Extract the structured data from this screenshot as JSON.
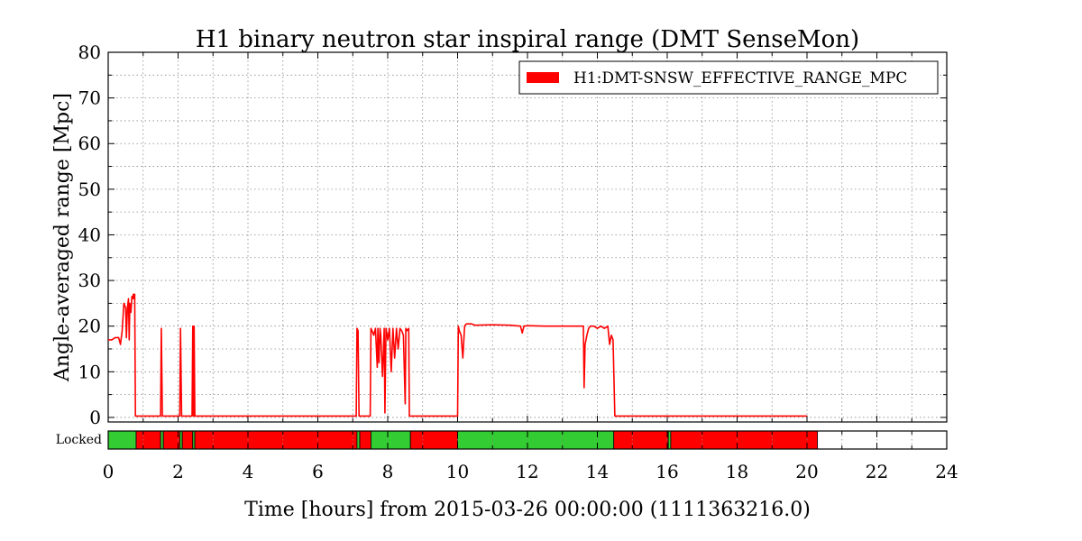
{
  "chart_data": {
    "type": "line",
    "title": "H1 binary neutron star inspiral range (DMT SenseMon)",
    "xlabel": "Time [hours] from 2015-03-26 00:00:00 (1111363216.0)",
    "ylabel": "Angle-averaged range [Mpc]",
    "xlim": [
      0,
      24
    ],
    "ylim": [
      -1,
      80
    ],
    "x_ticks": [
      "0",
      "2",
      "4",
      "6",
      "8",
      "10",
      "12",
      "14",
      "16",
      "18",
      "20",
      "22",
      "24"
    ],
    "y_ticks": [
      "0",
      "10",
      "20",
      "30",
      "40",
      "50",
      "60",
      "70",
      "80"
    ],
    "grid": true,
    "legend_placement": "top-right",
    "series": [
      {
        "name": "H1:DMT-SNSW_EFFECTIVE_RANGE_MPC",
        "color": "#ff0000",
        "x": [
          0,
          0.1,
          0.2,
          0.3,
          0.35,
          0.4,
          0.45,
          0.5,
          0.52,
          0.55,
          0.58,
          0.6,
          0.62,
          0.65,
          0.68,
          0.7,
          0.72,
          0.74,
          0.76,
          0.78,
          0.8,
          1.5,
          1.52,
          1.55,
          1.58,
          1.6,
          2.05,
          2.07,
          2.1,
          2.12,
          2.4,
          2.42,
          2.44,
          2.46,
          2.48,
          7.1,
          7.12,
          7.15,
          7.18,
          7.2,
          7.5,
          7.52,
          7.55,
          7.6,
          7.65,
          7.7,
          7.72,
          7.75,
          7.78,
          7.8,
          7.85,
          7.9,
          7.92,
          7.95,
          8.0,
          8.05,
          8.1,
          8.15,
          8.2,
          8.25,
          8.3,
          8.35,
          8.4,
          8.45,
          8.5,
          8.52,
          8.55,
          8.6,
          8.62,
          8.65,
          8.7,
          8.72,
          10.0,
          10.02,
          10.05,
          10.1,
          10.15,
          10.2,
          10.25,
          10.3,
          10.4,
          10.5,
          11.0,
          11.5,
          11.8,
          11.85,
          11.9,
          12.0,
          12.5,
          13.0,
          13.5,
          13.6,
          13.62,
          13.65,
          13.7,
          13.75,
          13.8,
          13.9,
          14.0,
          14.1,
          14.2,
          14.3,
          14.35,
          14.4,
          14.45,
          14.5,
          14.52,
          20.0
        ],
        "y": [
          17,
          17,
          17.5,
          17.5,
          16,
          19,
          25,
          24,
          17.5,
          24,
          26,
          17,
          25,
          23,
          26.5,
          26,
          27,
          26,
          27,
          0.3,
          0.3,
          0.3,
          19.5,
          0.3,
          0.3,
          0.3,
          0.3,
          19.5,
          0.3,
          0.3,
          0.3,
          20,
          0.3,
          20,
          0.3,
          0.3,
          19.5,
          19,
          0.3,
          0.3,
          0.3,
          19.5,
          19,
          18,
          19.5,
          11,
          19.5,
          12,
          19.5,
          18,
          9,
          19.5,
          1,
          19.5,
          17,
          19.5,
          10,
          19.5,
          13,
          19.5,
          15,
          19.5,
          19,
          18,
          3,
          19.5,
          19,
          19.5,
          0.3,
          0.3,
          0.3,
          0.3,
          0.3,
          20,
          19,
          18,
          13,
          20,
          20.5,
          20.5,
          20.5,
          20.2,
          20.3,
          20.2,
          20,
          18.5,
          20,
          20.1,
          20,
          20,
          20,
          20,
          6.5,
          16,
          18,
          19.5,
          20,
          20,
          19.5,
          20,
          19.5,
          20,
          16,
          18,
          17,
          0.3,
          0.3,
          0.3
        ]
      }
    ],
    "state_bar": {
      "label": "Locked",
      "active_color": "#33cc33",
      "inactive_color": "#ff0000",
      "segments": [
        {
          "start": 0,
          "end": 0.8,
          "state": "active"
        },
        {
          "start": 0.8,
          "end": 1.5,
          "state": "inactive"
        },
        {
          "start": 1.5,
          "end": 1.58,
          "state": "active"
        },
        {
          "start": 1.58,
          "end": 2.05,
          "state": "inactive"
        },
        {
          "start": 2.05,
          "end": 2.12,
          "state": "active"
        },
        {
          "start": 2.12,
          "end": 2.42,
          "state": "inactive"
        },
        {
          "start": 2.42,
          "end": 2.48,
          "state": "active"
        },
        {
          "start": 2.48,
          "end": 7.12,
          "state": "inactive"
        },
        {
          "start": 7.12,
          "end": 7.2,
          "state": "active"
        },
        {
          "start": 7.2,
          "end": 7.52,
          "state": "inactive"
        },
        {
          "start": 7.52,
          "end": 8.65,
          "state": "active"
        },
        {
          "start": 8.65,
          "end": 10.0,
          "state": "inactive"
        },
        {
          "start": 10.0,
          "end": 14.47,
          "state": "active"
        },
        {
          "start": 14.47,
          "end": 16.03,
          "state": "inactive"
        },
        {
          "start": 16.03,
          "end": 16.1,
          "state": "active"
        },
        {
          "start": 16.1,
          "end": 20.3,
          "state": "inactive"
        }
      ]
    }
  }
}
